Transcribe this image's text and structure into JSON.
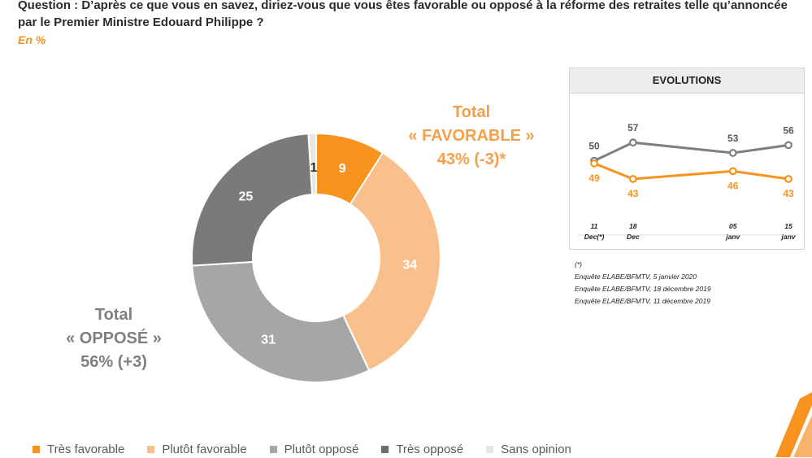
{
  "question": "Question : D’après ce que vous en savez, diriez-vous que vous êtes favorable ou opposé à la réforme des retraites telle qu’annoncée par le Premier Ministre Edouard Philippe ?",
  "unit": "En %",
  "totals": {
    "favorable": {
      "line1": "Total",
      "line2": "« FAVORABLE »",
      "line3": "43% (-3)*"
    },
    "oppose": {
      "line1": "Total",
      "line2": "« OPPOSÉ »",
      "line3": "56% (+3)"
    }
  },
  "chart_data": [
    {
      "type": "pie",
      "categories": [
        "Très favorable",
        "Plutôt favorable",
        "Plutôt opposé",
        "Très opposé",
        "Sans opinion"
      ],
      "values": [
        9,
        34,
        31,
        25,
        1
      ],
      "colors": [
        "#f7931e",
        "#f9c08e",
        "#a6a6a6",
        "#7a7a7a",
        "#e6e6e6"
      ],
      "label_colors": [
        "#ffffff",
        "#ffffff",
        "#ffffff",
        "#ffffff",
        "#333333"
      ],
      "donut": true,
      "legend": "bottom"
    },
    {
      "type": "line",
      "title": "EVOLUTIONS",
      "x": [
        {
          "day": "11",
          "sub": "Dec(*)"
        },
        {
          "day": "18",
          "sub": "Dec"
        },
        {
          "day": "05",
          "sub": "janv"
        },
        {
          "day": "15",
          "sub": "janv"
        }
      ],
      "x_positions": [
        11,
        18,
        36,
        46
      ],
      "series": [
        {
          "values": [
            50,
            57,
            53,
            56
          ],
          "color": "#7f7f7f",
          "label_color": "#595959"
        },
        {
          "values": [
            49,
            43,
            46,
            43
          ],
          "color": "#f7931e",
          "label_color": "#f7931e"
        }
      ]
    }
  ],
  "notes": [
    "(*)",
    "Enquête ELABE/BFMTV, 5 janvier 2020",
    "Enquête ELABE/BFMTV, 18 décembre 2019",
    "Enquête ELABE/BFMTV, 11 décembre 2019"
  ],
  "legend": [
    {
      "label": "Très favorable",
      "color": "#f7931e"
    },
    {
      "label": "Plutôt favorable",
      "color": "#f9c08e"
    },
    {
      "label": "Plutôt opposé",
      "color": "#a6a6a6"
    },
    {
      "label": "Très opposé",
      "color": "#6d6d6d"
    },
    {
      "label": "Sans opinion",
      "color": "#e6e6e6"
    }
  ]
}
